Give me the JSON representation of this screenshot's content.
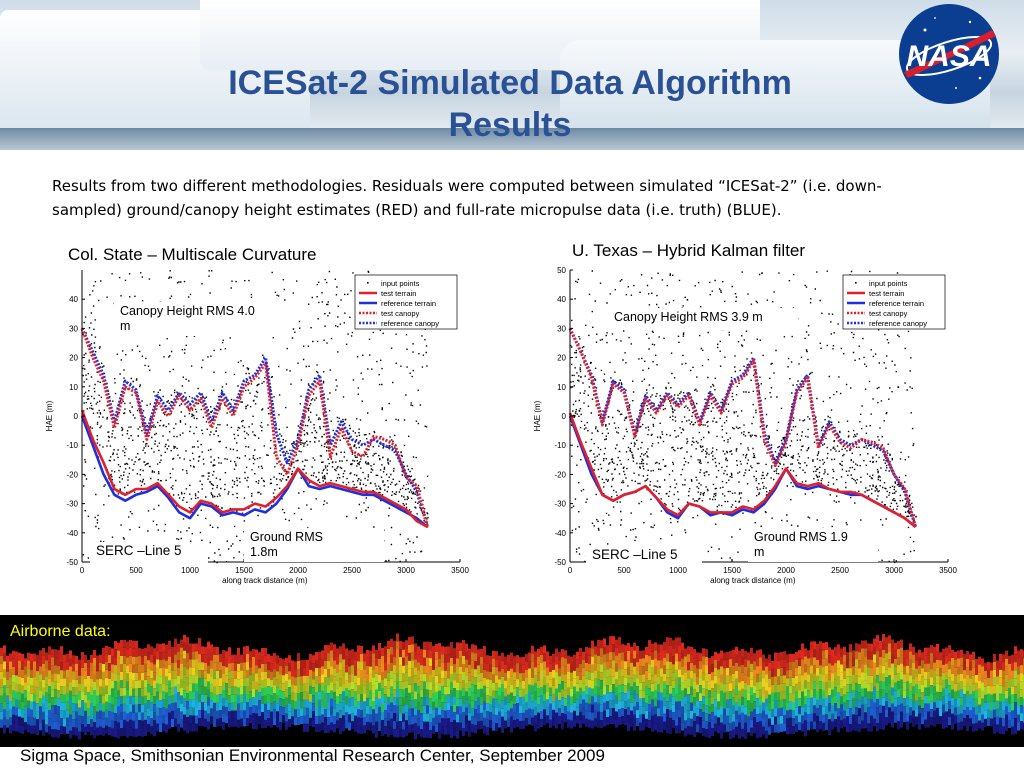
{
  "slide": {
    "title_line1": "ICESat-2 Simulated Data Algorithm",
    "title_line2": "Results",
    "description_line1": "Results from two different methodologies. Residuals were computed between simulated “ICESat-2” (i.e. down-",
    "description_line2": "sampled) ground/canopy height estimates  (RED) and full-rate micropulse data (i.e. truth) (BLUE).",
    "logo_text": "NASA",
    "airborne_label": "Airborne data:",
    "footer": "Sigma Space, Smithsonian Environmental Research Center, September 2009"
  },
  "colors": {
    "title": "#2a5194",
    "test_terrain": "#e0202a",
    "reference_terrain": "#1f2fe0",
    "test_canopy": "#e0202a",
    "reference_canopy": "#1f2fe0",
    "points": "#000000",
    "airborne_label": "#ffff00"
  },
  "chart_data": [
    {
      "type": "line",
      "panel_title": "Col. State – Multiscale Curvature",
      "xlabel": "along track distance (m)",
      "ylabel": "HAE (m)",
      "xlim": [
        0,
        3500
      ],
      "ylim": [
        -50,
        50
      ],
      "xticks": [
        "0",
        "500",
        "1000",
        "1500",
        "2000",
        "2500",
        "3000",
        "3500"
      ],
      "yticks": [
        "-50",
        "-40",
        "-30",
        "-20",
        "-10",
        "0",
        "10",
        "20",
        "30",
        "40"
      ],
      "legend": [
        "input points",
        "test terrain",
        "reference terrain",
        "test canopy",
        "reference canopy"
      ],
      "legend_position": "top-right",
      "annotations": {
        "canopy_rms_line1": "Canopy Height  RMS 4.0",
        "canopy_rms_line2": "m",
        "ground_rms_line1": "Ground RMS",
        "ground_rms_line2": "1.8m",
        "serc": "SERC –Line 5"
      },
      "x": [
        0,
        100,
        200,
        300,
        400,
        500,
        600,
        700,
        800,
        900,
        1000,
        1100,
        1200,
        1300,
        1400,
        1500,
        1600,
        1700,
        1800,
        1900,
        2000,
        2100,
        2200,
        2300,
        2400,
        2500,
        2600,
        2700,
        2800,
        2900,
        3000,
        3100,
        3200
      ],
      "series": [
        {
          "name": "test terrain",
          "values": [
            2,
            -8,
            -16,
            -25,
            -27,
            -25,
            -25,
            -23,
            -27,
            -31,
            -33,
            -29,
            -30,
            -33,
            -32,
            -32,
            -30,
            -31,
            -28,
            -24,
            -18,
            -22,
            -24,
            -23,
            -24,
            -25,
            -26,
            -26,
            -28,
            -30,
            -32,
            -36,
            -38
          ]
        },
        {
          "name": "reference terrain",
          "values": [
            0,
            -10,
            -20,
            -27,
            -29,
            -27,
            -26,
            -24,
            -28,
            -33,
            -35,
            -30,
            -31,
            -34,
            -33,
            -34,
            -32,
            -33,
            -30,
            -25,
            -18,
            -24,
            -25,
            -24,
            -25,
            -26,
            -27,
            -27,
            -29,
            -31,
            -33,
            -35,
            -38
          ]
        },
        {
          "name": "test canopy",
          "values": [
            30,
            20,
            12,
            -4,
            10,
            8,
            -8,
            5,
            0,
            7,
            2,
            6,
            -4,
            6,
            0,
            10,
            13,
            18,
            -14,
            -20,
            -10,
            7,
            12,
            -14,
            -4,
            -12,
            -14,
            -7,
            -8,
            -10,
            -21,
            -24,
            -38
          ]
        },
        {
          "name": "reference canopy",
          "values": [
            30,
            22,
            14,
            -2,
            12,
            9,
            -6,
            7,
            2,
            8,
            4,
            8,
            -2,
            8,
            2,
            12,
            14,
            20,
            -6,
            -16,
            -8,
            9,
            14,
            -10,
            -2,
            -8,
            -10,
            -8,
            -10,
            -12,
            -20,
            -26,
            -38
          ]
        }
      ]
    },
    {
      "type": "line",
      "panel_title": "U. Texas – Hybrid Kalman filter",
      "xlabel": "along track distance (m)",
      "ylabel": "HAE (m)",
      "xlim": [
        0,
        3500
      ],
      "ylim": [
        -50,
        50
      ],
      "xticks": [
        "0",
        "500",
        "1000",
        "1500",
        "2000",
        "2500",
        "3000",
        "3500"
      ],
      "yticks": [
        "-50",
        "-40",
        "-30",
        "-20",
        "-10",
        "0",
        "10",
        "20",
        "30",
        "40",
        "50"
      ],
      "legend": [
        "input points",
        "test terrain",
        "reference terrain",
        "test canopy",
        "reference canopy"
      ],
      "legend_position": "top-right",
      "annotations": {
        "canopy_rms_line1": "Canopy Height RMS 3.9 m",
        "canopy_rms_line2": "",
        "ground_rms_line1": "Ground RMS 1.9",
        "ground_rms_line2": "m",
        "serc": "SERC –Line 5"
      },
      "x": [
        0,
        100,
        200,
        300,
        400,
        500,
        600,
        700,
        800,
        900,
        1000,
        1100,
        1200,
        1300,
        1400,
        1500,
        1600,
        1700,
        1800,
        1900,
        2000,
        2100,
        2200,
        2300,
        2400,
        2500,
        2600,
        2700,
        2800,
        2900,
        3000,
        3100,
        3200
      ],
      "series": [
        {
          "name": "test terrain",
          "values": [
            1,
            -9,
            -18,
            -27,
            -29,
            -27,
            -26,
            -24,
            -28,
            -32,
            -34,
            -30,
            -31,
            -33,
            -33,
            -33,
            -31,
            -32,
            -29,
            -24,
            -18,
            -23,
            -24,
            -23,
            -25,
            -26,
            -26,
            -27,
            -29,
            -31,
            -33,
            -35,
            -38
          ]
        },
        {
          "name": "reference terrain",
          "values": [
            0,
            -10,
            -20,
            -27,
            -29,
            -27,
            -26,
            -24,
            -28,
            -33,
            -35,
            -30,
            -31,
            -34,
            -33,
            -34,
            -32,
            -33,
            -30,
            -25,
            -18,
            -24,
            -25,
            -24,
            -25,
            -26,
            -27,
            -27,
            -29,
            -31,
            -33,
            -35,
            -38
          ]
        },
        {
          "name": "test canopy",
          "values": [
            30,
            22,
            13,
            -3,
            11,
            8,
            -7,
            6,
            1,
            7,
            3,
            7,
            -3,
            7,
            1,
            11,
            13,
            19,
            -8,
            -17,
            -9,
            8,
            13,
            -11,
            -3,
            -9,
            -11,
            -8,
            -9,
            -11,
            -20,
            -25,
            -38
          ]
        },
        {
          "name": "reference canopy",
          "values": [
            30,
            22,
            14,
            -2,
            12,
            9,
            -6,
            7,
            2,
            8,
            4,
            8,
            -2,
            8,
            2,
            12,
            14,
            20,
            -6,
            -16,
            -8,
            9,
            14,
            -10,
            -2,
            -8,
            -10,
            -8,
            -10,
            -12,
            -20,
            -26,
            -38
          ]
        }
      ]
    }
  ]
}
